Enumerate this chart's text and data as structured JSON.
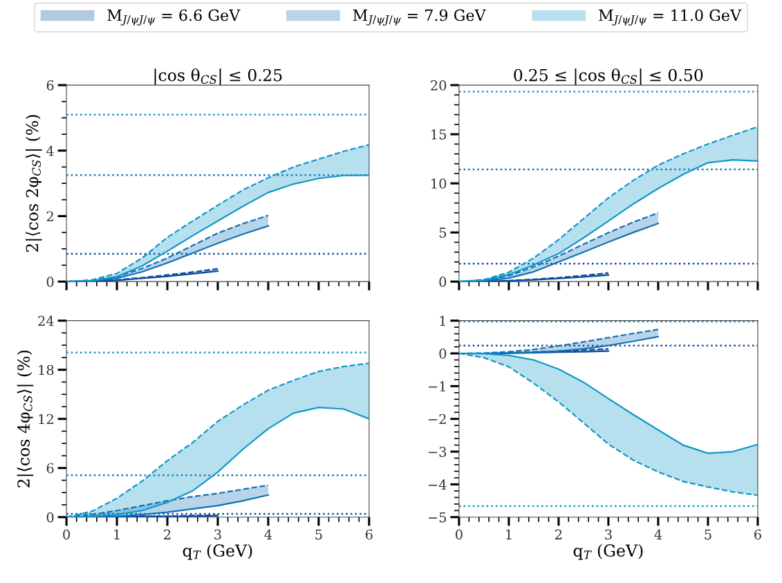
{
  "chart_data": [
    {
      "type": "line",
      "title": "|cos θ$_{CS}$| ≤ 0.25",
      "ylabel": "2|⟨cos 2φ$_{CS}$⟩| (%)",
      "legend": "top",
      "tick_labels": "y",
      "xlim": [
        0,
        6
      ],
      "xticks": [
        0,
        1,
        2,
        3,
        4,
        5,
        6
      ],
      "ylim": [
        0,
        6
      ],
      "yticks": [
        0,
        2,
        4,
        6
      ],
      "series": [
        {
          "name": "M$_{J/ψJ/ψ}$ = 6.6 GeV",
          "color": "#0b4a9b",
          "x": [
            0,
            0.5,
            1,
            1.5,
            2,
            2.5,
            3
          ],
          "values": [
            0,
            0.01,
            0.04,
            0.1,
            0.16,
            0.24,
            0.32
          ],
          "lower": [
            0,
            0.01,
            0.04,
            0.1,
            0.16,
            0.24,
            0.32
          ],
          "upper": [
            0,
            0.01,
            0.05,
            0.12,
            0.2,
            0.29,
            0.39
          ]
        },
        {
          "color": "#0b4a9b",
          "line_style": "dashed",
          "x": [
            0,
            0.5,
            1,
            1.5,
            2,
            2.5,
            3
          ],
          "values": [
            0,
            0.01,
            0.05,
            0.12,
            0.2,
            0.29,
            0.39
          ]
        },
        {
          "name": "M$_{J/ψJ/ψ}$ = 7.9 GeV",
          "color": "#1071b5",
          "x": [
            0,
            0.5,
            1,
            1.5,
            2,
            2.5,
            3,
            3.5,
            4
          ],
          "values": [
            0,
            0.02,
            0.1,
            0.3,
            0.57,
            0.87,
            1.17,
            1.45,
            1.7
          ],
          "lower": [
            0,
            0.02,
            0.1,
            0.3,
            0.57,
            0.87,
            1.17,
            1.45,
            1.7
          ],
          "upper": [
            0,
            0.03,
            0.15,
            0.4,
            0.72,
            1.1,
            1.48,
            1.77,
            2.02
          ]
        },
        {
          "color": "#1071b5",
          "line_style": "dashed",
          "x": [
            0,
            0.5,
            1,
            1.5,
            2,
            2.5,
            3,
            3.5,
            4
          ],
          "values": [
            0,
            0.03,
            0.15,
            0.4,
            0.72,
            1.1,
            1.48,
            1.77,
            2.02
          ]
        },
        {
          "name": "M$_{J/ψJ/ψ}$ = 11.0 GeV",
          "color": "#0f97c9",
          "x": [
            0,
            0.5,
            1,
            1.5,
            2,
            2.5,
            3,
            3.5,
            4,
            4.5,
            5,
            5.5,
            6
          ],
          "values": [
            0,
            0.02,
            0.15,
            0.48,
            0.93,
            1.4,
            1.85,
            2.3,
            2.72,
            2.98,
            3.15,
            3.24,
            3.25
          ],
          "lower": [
            0,
            0.02,
            0.15,
            0.48,
            0.93,
            1.4,
            1.85,
            2.3,
            2.72,
            2.98,
            3.15,
            3.24,
            3.25
          ],
          "upper": [
            0,
            0.05,
            0.25,
            0.72,
            1.35,
            1.85,
            2.33,
            2.8,
            3.17,
            3.5,
            3.74,
            3.98,
            4.18
          ]
        },
        {
          "color": "#0f97c9",
          "line_style": "dashed",
          "x": [
            0,
            0.5,
            1,
            1.5,
            2,
            2.5,
            3,
            3.5,
            4,
            4.5,
            5,
            5.5,
            6
          ],
          "values": [
            0,
            0.05,
            0.25,
            0.72,
            1.35,
            1.85,
            2.33,
            2.8,
            3.17,
            3.5,
            3.74,
            3.98,
            4.18
          ]
        }
      ],
      "ref_lines": [
        {
          "axis": "y",
          "value": 5.1,
          "color": "#0f97c9",
          "line_style": "dotted"
        },
        {
          "axis": "y",
          "value": 3.25,
          "color": "#1071b5",
          "line_style": "dotted"
        },
        {
          "axis": "y",
          "value": 0.85,
          "color": "#0b4a9b",
          "line_style": "dotted"
        }
      ]
    },
    {
      "type": "line",
      "title": "0.25 ≤ |cos θ$_{CS}$| ≤ 0.50",
      "tick_labels": "y",
      "xlim": [
        0,
        6
      ],
      "xticks": [
        0,
        1,
        2,
        3,
        4,
        5,
        6
      ],
      "ylim": [
        0,
        20
      ],
      "yticks": [
        0,
        5,
        10,
        15,
        20
      ],
      "series": [
        {
          "color": "#0b4a9b",
          "x": [
            0,
            0.5,
            1,
            1.5,
            2,
            2.5,
            3
          ],
          "values": [
            0,
            0.02,
            0.08,
            0.18,
            0.32,
            0.48,
            0.66
          ],
          "lower": [
            0,
            0.02,
            0.08,
            0.18,
            0.32,
            0.48,
            0.66
          ],
          "upper": [
            0,
            0.02,
            0.1,
            0.23,
            0.4,
            0.62,
            0.88
          ]
        },
        {
          "color": "#0b4a9b",
          "line_style": "dashed",
          "x": [
            0,
            0.5,
            1,
            1.5,
            2,
            2.5,
            3
          ],
          "values": [
            0,
            0.02,
            0.1,
            0.23,
            0.4,
            0.62,
            0.88
          ]
        },
        {
          "color": "#1071b5",
          "x": [
            0,
            0.5,
            1,
            1.5,
            2,
            2.5,
            3,
            3.5,
            4
          ],
          "values": [
            0,
            0.08,
            0.35,
            1.0,
            2.0,
            3.0,
            4.03,
            5.0,
            5.92
          ],
          "lower": [
            0,
            0.08,
            0.35,
            1.0,
            2.0,
            3.0,
            4.03,
            5.0,
            5.92
          ],
          "upper": [
            0,
            0.12,
            0.6,
            1.5,
            2.6,
            3.8,
            4.98,
            6.05,
            7.0
          ]
        },
        {
          "color": "#1071b5",
          "line_style": "dashed",
          "x": [
            0,
            0.5,
            1,
            1.5,
            2,
            2.5,
            3,
            3.5,
            4
          ],
          "values": [
            0,
            0.12,
            0.6,
            1.5,
            2.6,
            3.8,
            4.98,
            6.05,
            7.0
          ]
        },
        {
          "color": "#0f97c9",
          "x": [
            0,
            0.5,
            1,
            1.5,
            2,
            2.5,
            3,
            3.5,
            4,
            4.5,
            5,
            5.5,
            6
          ],
          "values": [
            0,
            0.15,
            0.71,
            1.7,
            2.84,
            4.45,
            6.16,
            7.9,
            9.48,
            10.9,
            12.1,
            12.4,
            12.27
          ],
          "lower": [
            0,
            0.15,
            0.71,
            1.7,
            2.84,
            4.45,
            6.16,
            7.9,
            9.48,
            10.9,
            12.1,
            12.4,
            12.27
          ],
          "upper": [
            0,
            0.2,
            0.95,
            2.4,
            4.27,
            6.4,
            8.53,
            10.3,
            11.85,
            13.0,
            14.0,
            14.9,
            15.76
          ]
        },
        {
          "color": "#0f97c9",
          "line_style": "dashed",
          "x": [
            0,
            0.5,
            1,
            1.5,
            2,
            2.5,
            3,
            3.5,
            4,
            4.5,
            5,
            5.5,
            6
          ],
          "values": [
            0,
            0.2,
            0.95,
            2.4,
            4.27,
            6.4,
            8.53,
            10.3,
            11.85,
            13.0,
            14.0,
            14.9,
            15.76
          ]
        }
      ],
      "ref_lines": [
        {
          "axis": "y",
          "value": 19.34,
          "color": "#0f97c9",
          "line_style": "dotted"
        },
        {
          "axis": "y",
          "value": 11.42,
          "color": "#1071b5",
          "line_style": "dotted"
        },
        {
          "axis": "y",
          "value": 1.82,
          "color": "#0b4a9b",
          "line_style": "dotted"
        }
      ]
    },
    {
      "type": "line",
      "xlabel": "q$_{T}$ (GeV)",
      "ylabel": "2|⟨cos 4φ$_{CS}$⟩| (%)",
      "xlim": [
        0,
        6
      ],
      "xticks": [
        0,
        1,
        2,
        3,
        4,
        5,
        6
      ],
      "ylim": [
        0,
        24
      ],
      "yticks": [
        0,
        6,
        12,
        18,
        24
      ],
      "series": [
        {
          "color": "#0b4a9b",
          "x": [
            0,
            0.5,
            1,
            1.5,
            2,
            2.5,
            3
          ],
          "values": [
            0,
            0,
            0,
            0.1,
            0.1,
            0.1,
            0.2
          ],
          "lower": [
            0,
            0,
            0,
            0.1,
            0.1,
            0.1,
            0.2
          ],
          "upper": [
            0,
            0,
            0,
            0.1,
            0.1,
            0.2,
            0.2
          ]
        },
        {
          "color": "#0b4a9b",
          "line_style": "dashed",
          "x": [
            0,
            0.5,
            1,
            1.5,
            2,
            2.5,
            3
          ],
          "values": [
            0,
            0,
            0,
            0.1,
            0.1,
            0.2,
            0.2
          ]
        },
        {
          "color": "#1071b5",
          "x": [
            0,
            0.5,
            1,
            1.5,
            2,
            2.5,
            3,
            3.5,
            4
          ],
          "values": [
            0,
            0,
            0.1,
            0.3,
            0.6,
            1.0,
            1.4,
            2.0,
            2.7
          ],
          "lower": [
            0,
            0,
            0.1,
            0.3,
            0.6,
            1.0,
            1.4,
            2.0,
            2.7
          ],
          "upper": [
            0,
            0.3,
            0.8,
            1.4,
            2.0,
            2.5,
            2.9,
            3.4,
            3.9
          ]
        },
        {
          "color": "#1071b5",
          "line_style": "dashed",
          "x": [
            0,
            0.5,
            1,
            1.5,
            2,
            2.5,
            3,
            3.5,
            4
          ],
          "values": [
            0,
            0.3,
            0.8,
            1.4,
            2.0,
            2.5,
            2.9,
            3.4,
            3.9
          ]
        },
        {
          "color": "#0f97c9",
          "x": [
            0,
            0.5,
            1,
            1.5,
            2,
            2.5,
            3,
            3.5,
            4,
            4.5,
            5,
            5.5,
            6
          ],
          "values": [
            0,
            0.1,
            0.3,
            0.8,
            1.8,
            3.2,
            5.5,
            8.3,
            10.8,
            12.7,
            13.4,
            13.2,
            12.0
          ],
          "lower": [
            0,
            0.1,
            0.3,
            0.8,
            1.8,
            3.2,
            5.5,
            8.3,
            10.8,
            12.7,
            13.4,
            13.2,
            12.0
          ],
          "upper": [
            0,
            0.7,
            2.3,
            4.4,
            6.9,
            9.1,
            11.7,
            13.7,
            15.5,
            16.7,
            17.8,
            18.4,
            18.8
          ]
        },
        {
          "color": "#0f97c9",
          "line_style": "dashed",
          "x": [
            0,
            0.5,
            1,
            1.5,
            2,
            2.5,
            3,
            3.5,
            4,
            4.5,
            5,
            5.5,
            6
          ],
          "values": [
            0,
            0.7,
            2.3,
            4.4,
            6.9,
            9.1,
            11.7,
            13.7,
            15.5,
            16.7,
            17.8,
            18.4,
            18.8
          ]
        }
      ],
      "ref_lines": [
        {
          "axis": "y",
          "value": 20.1,
          "color": "#0f97c9",
          "line_style": "dotted"
        },
        {
          "axis": "y",
          "value": 5.1,
          "color": "#1071b5",
          "line_style": "dotted"
        },
        {
          "axis": "y",
          "value": 0.4,
          "color": "#0b4a9b",
          "line_style": "dotted"
        }
      ]
    },
    {
      "type": "line",
      "xlabel": "q$_{T}$ (GeV)",
      "xlim": [
        0,
        6
      ],
      "xticks": [
        0,
        1,
        2,
        3,
        4,
        5,
        6
      ],
      "ylim": [
        -5,
        1
      ],
      "yticks": [
        {
          "value": -5,
          "label": "−5"
        },
        {
          "value": -4,
          "label": "−4"
        },
        {
          "value": -3,
          "label": "−3"
        },
        {
          "value": -2,
          "label": "−2"
        },
        {
          "value": -1,
          "label": "−1"
        },
        0,
        1
      ],
      "series": [
        {
          "color": "#0b4a9b",
          "x": [
            0,
            0.5,
            1,
            1.5,
            2,
            2.5,
            3
          ],
          "values": [
            0,
            0,
            0.01,
            0.02,
            0.04,
            0.05,
            0.07
          ],
          "lower": [
            0,
            0,
            0.01,
            0.02,
            0.04,
            0.05,
            0.07
          ],
          "upper": [
            0,
            0,
            0.02,
            0.04,
            0.07,
            0.1,
            0.14
          ]
        },
        {
          "color": "#0b4a9b",
          "line_style": "dashed",
          "x": [
            0,
            0.5,
            1,
            1.5,
            2,
            2.5,
            3
          ],
          "values": [
            0,
            0,
            0.02,
            0.04,
            0.07,
            0.1,
            0.14
          ]
        },
        {
          "color": "#1071b5",
          "x": [
            0,
            0.5,
            1,
            1.5,
            2,
            2.5,
            3,
            3.5,
            4
          ],
          "values": [
            0,
            0,
            0.01,
            0.03,
            0.07,
            0.14,
            0.24,
            0.37,
            0.51
          ],
          "lower": [
            0,
            0,
            0.01,
            0.03,
            0.07,
            0.14,
            0.24,
            0.37,
            0.51
          ],
          "upper": [
            0,
            0.01,
            0.05,
            0.12,
            0.23,
            0.35,
            0.48,
            0.61,
            0.73
          ]
        },
        {
          "color": "#1071b5",
          "line_style": "dashed",
          "x": [
            0,
            0.5,
            1,
            1.5,
            2,
            2.5,
            3,
            3.5,
            4
          ],
          "values": [
            0,
            0.01,
            0.05,
            0.12,
            0.23,
            0.35,
            0.48,
            0.61,
            0.73
          ]
        },
        {
          "color": "#0f97c9",
          "x": [
            0,
            0.5,
            1,
            1.5,
            2,
            2.5,
            3,
            3.5,
            4,
            4.5,
            5,
            5.5,
            6
          ],
          "values": [
            0,
            -0.01,
            -0.06,
            -0.2,
            -0.48,
            -0.88,
            -1.38,
            -1.87,
            -2.34,
            -2.8,
            -3.05,
            -3.0,
            -2.78
          ],
          "lower": [
            0,
            -0.13,
            -0.41,
            -0.91,
            -1.48,
            -2.12,
            -2.77,
            -3.26,
            -3.62,
            -3.91,
            -4.08,
            -4.23,
            -4.33
          ],
          "upper": [
            0,
            -0.01,
            -0.06,
            -0.2,
            -0.48,
            -0.88,
            -1.38,
            -1.87,
            -2.34,
            -2.8,
            -3.05,
            -3.0,
            -2.78
          ]
        },
        {
          "color": "#0f97c9",
          "line_style": "dashed",
          "x": [
            0,
            0.5,
            1,
            1.5,
            2,
            2.5,
            3,
            3.5,
            4,
            4.5,
            5,
            5.5,
            6
          ],
          "values": [
            0,
            -0.13,
            -0.41,
            -0.91,
            -1.48,
            -2.12,
            -2.77,
            -3.26,
            -3.62,
            -3.91,
            -4.08,
            -4.23,
            -4.33
          ]
        }
      ],
      "ref_lines": [
        {
          "axis": "y",
          "value": 0.97,
          "color": "#0f97c9",
          "line_style": "dotted"
        },
        {
          "axis": "y",
          "value": 0.24,
          "color": "#0b4a9b",
          "line_style": "dotted"
        },
        {
          "axis": "y",
          "value": -4.66,
          "color": "#0f97c9",
          "line_style": "dotted"
        }
      ]
    }
  ]
}
